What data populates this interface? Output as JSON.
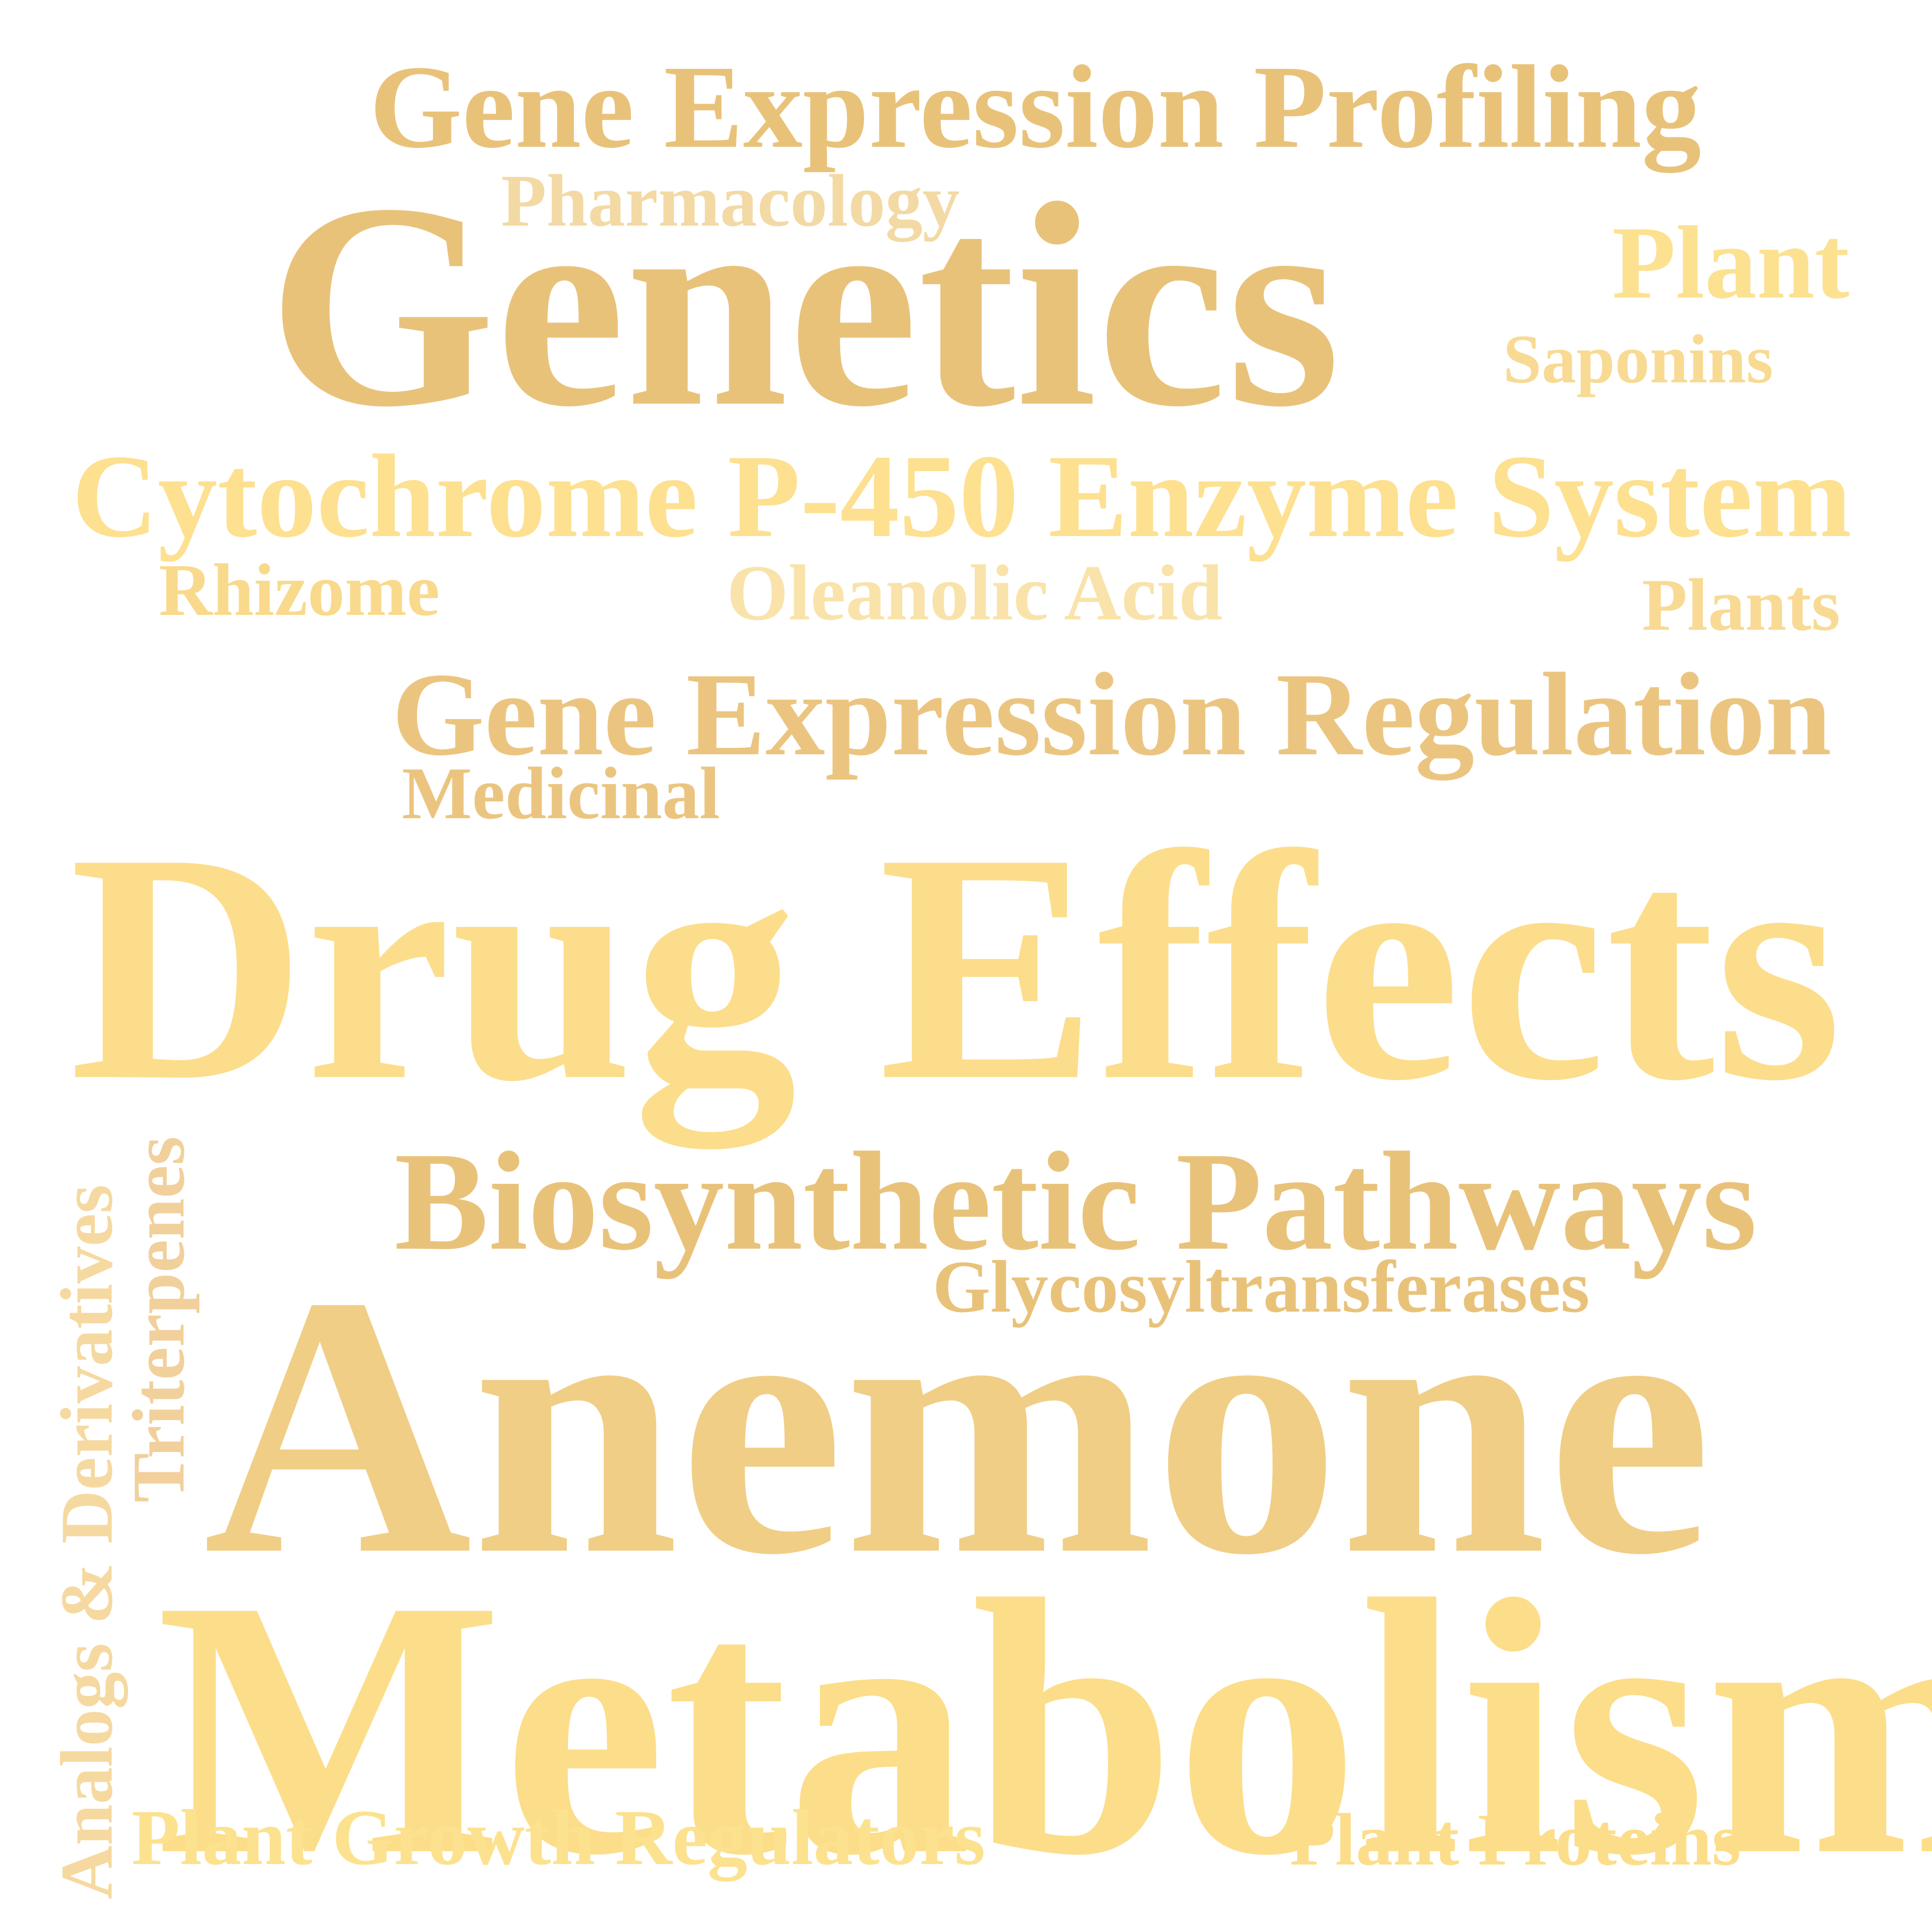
{
  "cloud": {
    "palette": {
      "background": "#ffffff",
      "gold_dark": "#E9C27A",
      "gold_mid": "#F0CE86",
      "gold_light": "#FBDB88",
      "cream": "#F6DFA8"
    },
    "words": [
      {
        "text": "Gene Expression Profiling",
        "color": "#E9C27A"
      },
      {
        "text": "Pharmacology",
        "color": "#F3D9A4"
      },
      {
        "text": "Genetics",
        "color": "#E9C27A"
      },
      {
        "text": "Plant",
        "color": "#FCE190"
      },
      {
        "text": "Saponins",
        "color": "#F8DA93"
      },
      {
        "text": "Cytochrome P-450 Enzyme System",
        "color": "#FDE090"
      },
      {
        "text": "Rhizome",
        "color": "#F9D98B"
      },
      {
        "text": "Oleanolic Acid",
        "color": "#F9E3AA"
      },
      {
        "text": "Plants",
        "color": "#F8DA94"
      },
      {
        "text": "Gene Expression Regulation",
        "color": "#EBC580"
      },
      {
        "text": "Medicinal",
        "color": "#EBC580"
      },
      {
        "text": "Drug Effects",
        "color": "#FCDD8C"
      },
      {
        "text": "Biosynthetic Pathways",
        "color": "#E9C27A"
      },
      {
        "text": "Glycosyltransferases",
        "color": "#E9C27A"
      },
      {
        "text": "Anemone",
        "color": "#F0CE86"
      },
      {
        "text": "Metabolism",
        "color": "#FCDD89"
      },
      {
        "text": "Plant Growth Regulators",
        "color": "#FCE28F"
      },
      {
        "text": "Plant Proteins",
        "color": "#FCDD8A"
      },
      {
        "text": "Analogs & Derivatives",
        "color": "#F5D9A0"
      },
      {
        "text": "Triterpenes",
        "color": "#F1D09B"
      }
    ]
  }
}
